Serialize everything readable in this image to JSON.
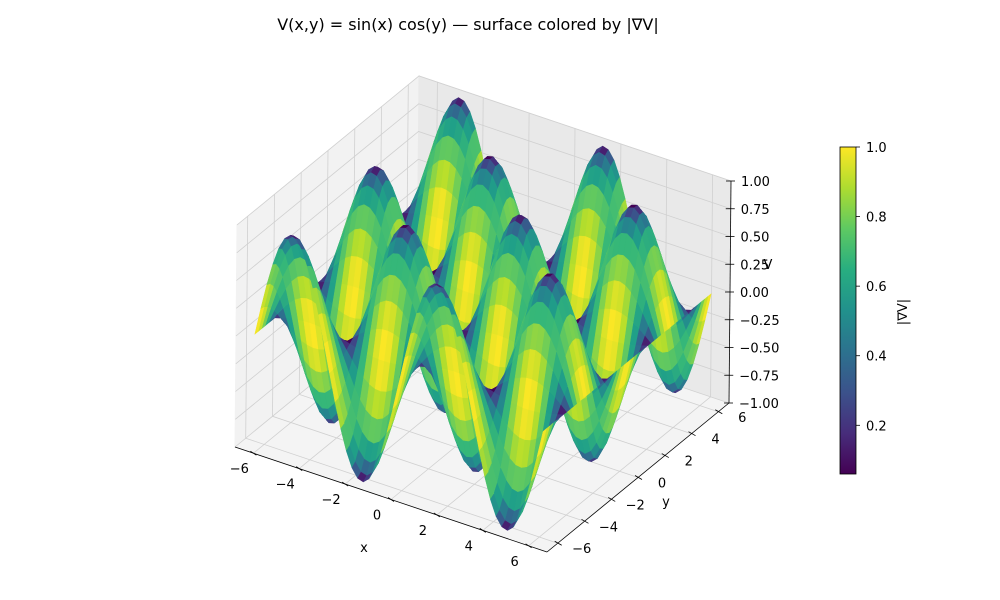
{
  "chart_data": {
    "type": "surface3d",
    "title": "V(x,y) = sin(x) cos(y) — surface colored by |∇V|",
    "function": "sin(x) cos(y)",
    "color_by": "|∇V|",
    "xlabel": "x",
    "ylabel": "y",
    "zlabel": "V",
    "xlim": [
      -6.8,
      6.8
    ],
    "ylim": [
      -6.8,
      6.8
    ],
    "zlim": [
      -1.0,
      1.0
    ],
    "x_range": [
      -6.283,
      6.283
    ],
    "y_range": [
      -6.283,
      6.283
    ],
    "x_ticks": [
      -6,
      -4,
      -2,
      0,
      2,
      4,
      6
    ],
    "x_tick_labels": [
      "−6",
      "−4",
      "−2",
      "0",
      "2",
      "4",
      "6"
    ],
    "y_ticks": [
      -6,
      -4,
      -2,
      0,
      2,
      4,
      6
    ],
    "y_tick_labels": [
      "−6",
      "−4",
      "−2",
      "0",
      "2",
      "4",
      "6"
    ],
    "z_ticks": [
      -1.0,
      -0.75,
      -0.5,
      -0.25,
      0.0,
      0.25,
      0.5,
      0.75,
      1.0
    ],
    "z_tick_labels": [
      "−1.00",
      "−0.75",
      "−0.50",
      "−0.25",
      "0.00",
      "0.25",
      "0.50",
      "0.75",
      "1.00"
    ],
    "colormap": "viridis",
    "colorbar": {
      "label": "|∇V|",
      "range": [
        0.06,
        1.0
      ],
      "ticks": [
        0.2,
        0.4,
        0.6,
        0.8,
        1.0
      ],
      "tick_labels": [
        "0.2",
        "0.4",
        "0.6",
        "0.8",
        "1.0"
      ]
    },
    "grid": true
  }
}
